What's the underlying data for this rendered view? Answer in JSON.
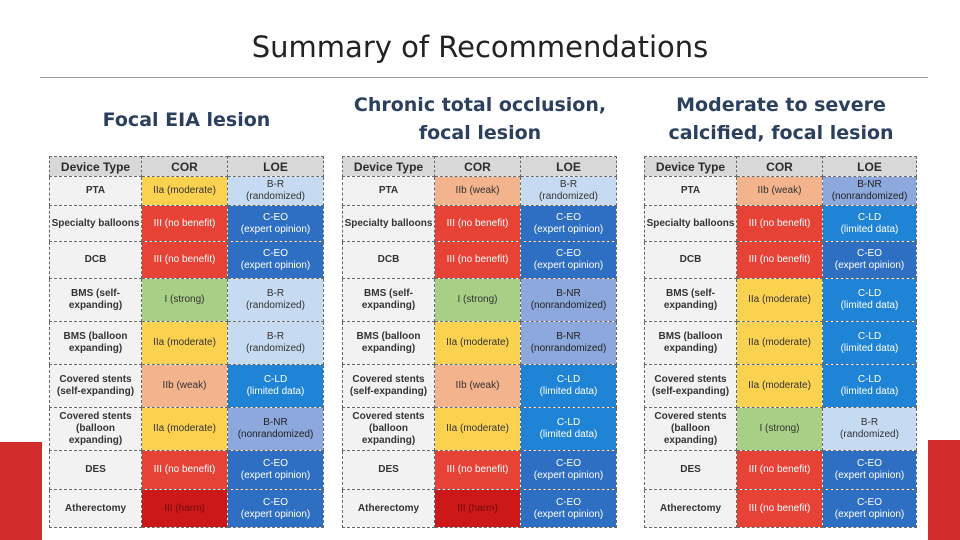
{
  "slide": {
    "title": "Summary of Recommendations"
  },
  "headers": {
    "device": "Device Type",
    "cor": "COR",
    "loe": "LOE"
  },
  "panels": [
    {
      "title_lines": [
        "Focal EIA lesion"
      ],
      "rows": [
        {
          "device": "PTA",
          "cor": "IIa (moderate)",
          "cor_class": "c-iia",
          "loe1": "B-R",
          "loe2": "(randomized)",
          "loe_class": "c-br"
        },
        {
          "device": "Specialty balloons",
          "cor": "III (no benefit)",
          "cor_class": "c-iii",
          "loe1": "C-EO",
          "loe2": "(expert opinion)",
          "loe_class": "c-ceo"
        },
        {
          "device": "DCB",
          "cor": "III (no benefit)",
          "cor_class": "c-iii",
          "loe1": "C-EO",
          "loe2": "(expert opinion)",
          "loe_class": "c-ceo"
        },
        {
          "device": "BMS (self-expanding)",
          "cor": "I (strong)",
          "cor_class": "c-i",
          "loe1": "B-R",
          "loe2": "(randomized)",
          "loe_class": "c-br"
        },
        {
          "device": "BMS (balloon expanding)",
          "cor": "IIa (moderate)",
          "cor_class": "c-iia",
          "loe1": "B-R",
          "loe2": "(randomized)",
          "loe_class": "c-br"
        },
        {
          "device": "Covered stents (self-expanding)",
          "cor": "IIb (weak)",
          "cor_class": "c-iib",
          "loe1": "C-LD",
          "loe2": "(limited data)",
          "loe_class": "c-cld"
        },
        {
          "device": "Covered stents (balloon expanding)",
          "cor": "IIa (moderate)",
          "cor_class": "c-iia",
          "loe1": "B-NR",
          "loe2": "(nonrandomized)",
          "loe_class": "c-bnr"
        },
        {
          "device": "DES",
          "cor": "III (no benefit)",
          "cor_class": "c-iii",
          "loe1": "C-EO",
          "loe2": "(expert opinion)",
          "loe_class": "c-ceo"
        },
        {
          "device": "Atherectomy",
          "cor": "III (harm)",
          "cor_class": "c-harm",
          "loe1": "C-EO",
          "loe2": "(expert opinion)",
          "loe_class": "c-ceo"
        }
      ]
    },
    {
      "title_lines": [
        "Chronic total occlusion,",
        "focal lesion"
      ],
      "rows": [
        {
          "device": "PTA",
          "cor": "IIb (weak)",
          "cor_class": "c-iib",
          "loe1": "B-R",
          "loe2": "(randomized)",
          "loe_class": "c-br"
        },
        {
          "device": "Specialty balloons",
          "cor": "III (no benefit)",
          "cor_class": "c-iii",
          "loe1": "C-EO",
          "loe2": "(expert opinion)",
          "loe_class": "c-ceo"
        },
        {
          "device": "DCB",
          "cor": "III (no benefit)",
          "cor_class": "c-iii",
          "loe1": "C-EO",
          "loe2": "(expert opinion)",
          "loe_class": "c-ceo"
        },
        {
          "device": "BMS (self-expanding)",
          "cor": "I (strong)",
          "cor_class": "c-i",
          "loe1": "B-NR",
          "loe2": "(nonrandomized)",
          "loe_class": "c-bnr"
        },
        {
          "device": "BMS (balloon expanding)",
          "cor": "IIa (moderate)",
          "cor_class": "c-iia",
          "loe1": "B-NR",
          "loe2": "(nonrandomized)",
          "loe_class": "c-bnr"
        },
        {
          "device": "Covered stents (self-expanding)",
          "cor": "IIb (weak)",
          "cor_class": "c-iib",
          "loe1": "C-LD",
          "loe2": "(limited data)",
          "loe_class": "c-cld"
        },
        {
          "device": "Covered stents (balloon expanding)",
          "cor": "IIa (moderate)",
          "cor_class": "c-iia",
          "loe1": "C-LD",
          "loe2": "(limited data)",
          "loe_class": "c-cld"
        },
        {
          "device": "DES",
          "cor": "III (no benefit)",
          "cor_class": "c-iii",
          "loe1": "C-EO",
          "loe2": "(expert opinion)",
          "loe_class": "c-ceo"
        },
        {
          "device": "Atherectomy",
          "cor": "III (harm)",
          "cor_class": "c-harm",
          "loe1": "C-EO",
          "loe2": "(expert opinion)",
          "loe_class": "c-ceo"
        }
      ]
    },
    {
      "title_lines": [
        "Moderate to severe",
        "calcified, focal lesion"
      ],
      "rows": [
        {
          "device": "PTA",
          "cor": "IIb (weak)",
          "cor_class": "c-iib",
          "loe1": "B-NR",
          "loe2": "(nonrandomized)",
          "loe_class": "c-bnr"
        },
        {
          "device": "Specialty balloons",
          "cor": "III (no benefit)",
          "cor_class": "c-iii",
          "loe1": "C-LD",
          "loe2": "(limited data)",
          "loe_class": "c-cld"
        },
        {
          "device": "DCB",
          "cor": "III (no benefit)",
          "cor_class": "c-iii",
          "loe1": "C-EO",
          "loe2": "(expert opinion)",
          "loe_class": "c-ceo"
        },
        {
          "device": "BMS (self-expanding)",
          "cor": "IIa (moderate)",
          "cor_class": "c-iia",
          "loe1": "C-LD",
          "loe2": "(limited data)",
          "loe_class": "c-cld"
        },
        {
          "device": "BMS (balloon expanding)",
          "cor": "IIa (moderate)",
          "cor_class": "c-iia",
          "loe1": "C-LD",
          "loe2": "(limited data)",
          "loe_class": "c-cld"
        },
        {
          "device": "Covered stents (self-expanding)",
          "cor": "IIa (moderate)",
          "cor_class": "c-iia",
          "loe1": "C-LD",
          "loe2": "(limited data)",
          "loe_class": "c-cld"
        },
        {
          "device": "Covered stents (balloon expanding)",
          "cor": "I (strong)",
          "cor_class": "c-i",
          "loe1": "B-R",
          "loe2": "(randomized)",
          "loe_class": "c-br"
        },
        {
          "device": "DES",
          "cor": "III (no benefit)",
          "cor_class": "c-iii",
          "loe1": "C-EO",
          "loe2": "(expert opinion)",
          "loe_class": "c-ceo"
        },
        {
          "device": "Atherectomy",
          "cor": "III (no benefit)",
          "cor_class": "c-iii",
          "loe1": "C-EO",
          "loe2": "(expert opinion)",
          "loe_class": "c-ceo"
        }
      ]
    }
  ]
}
